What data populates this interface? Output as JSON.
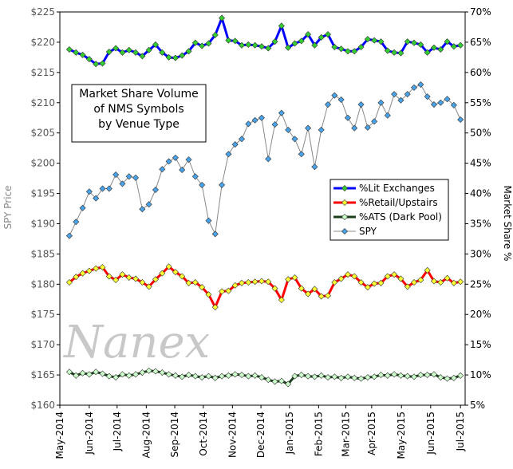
{
  "chart_data": {
    "type": "line",
    "title": [
      "Market Share Volume",
      "of NMS Symbols",
      "by Venue Type"
    ],
    "watermark": "Nanex",
    "y_label": "SPY Price",
    "y2_label": "Market Share %",
    "categories": [
      null,
      null,
      null,
      null,
      null,
      null,
      null,
      null,
      null,
      null,
      null,
      null,
      null,
      null,
      null,
      null,
      null,
      null,
      null,
      null,
      null,
      null,
      null,
      null,
      null,
      null,
      null,
      null,
      null,
      null,
      null,
      null,
      null,
      null,
      null,
      null,
      null,
      null,
      null,
      null,
      null,
      null,
      null,
      null,
      null,
      null,
      null,
      null,
      null,
      null,
      null,
      null,
      null,
      null,
      null,
      null,
      null,
      null,
      null,
      null
    ],
    "xlim": [
      -1.44,
      59.7
    ],
    "xticks": [
      {
        "value": -1.44,
        "label": "May-2014"
      },
      {
        "value": 3.0,
        "label": "Jun-2014"
      },
      {
        "value": 7.2,
        "label": "Jul-2014"
      },
      {
        "value": 11.6,
        "label": "Aug-2014"
      },
      {
        "value": 15.9,
        "label": "Sep-2014"
      },
      {
        "value": 20.2,
        "label": "Oct-2014"
      },
      {
        "value": 24.6,
        "label": "Nov-2014"
      },
      {
        "value": 28.9,
        "label": "Dec-2014"
      },
      {
        "value": 33.2,
        "label": "Jan-2015"
      },
      {
        "value": 37.6,
        "label": "Feb-2015"
      },
      {
        "value": 41.7,
        "label": "Mar-2015"
      },
      {
        "value": 45.6,
        "label": "Apr-2015"
      },
      {
        "value": 50.1,
        "label": "May-2015"
      },
      {
        "value": 54.5,
        "label": "Jun-2015"
      },
      {
        "value": 59.0,
        "label": "Jul-2015"
      }
    ],
    "ylim": [
      160,
      225
    ],
    "yticks": [
      {
        "value": 160,
        "label": "$160"
      },
      {
        "value": 165,
        "label": "$165"
      },
      {
        "value": 170,
        "label": "$170"
      },
      {
        "value": 175,
        "label": "$175"
      },
      {
        "value": 180,
        "label": "$180"
      },
      {
        "value": 185,
        "label": "$185"
      },
      {
        "value": 190,
        "label": "$190"
      },
      {
        "value": 195,
        "label": "$195"
      },
      {
        "value": 200,
        "label": "$200"
      },
      {
        "value": 205,
        "label": "$205"
      },
      {
        "value": 210,
        "label": "$210"
      },
      {
        "value": 215,
        "label": "$215"
      },
      {
        "value": 220,
        "label": "$220"
      },
      {
        "value": 225,
        "label": "$225"
      }
    ],
    "y2lim": [
      5,
      70
    ],
    "y2ticks": [
      {
        "value": 5,
        "label": "5%"
      },
      {
        "value": 10,
        "label": "10%"
      },
      {
        "value": 15,
        "label": "15%"
      },
      {
        "value": 20,
        "label": "20%"
      },
      {
        "value": 25,
        "label": "25%"
      },
      {
        "value": 30,
        "label": "30%"
      },
      {
        "value": 35,
        "label": "35%"
      },
      {
        "value": 40,
        "label": "40%"
      },
      {
        "value": 45,
        "label": "45%"
      },
      {
        "value": 50,
        "label": "50%"
      },
      {
        "value": 55,
        "label": "55%"
      },
      {
        "value": 60,
        "label": "60%"
      },
      {
        "value": 65,
        "label": "65%"
      },
      {
        "value": 70,
        "label": "70%"
      }
    ],
    "legend": "right",
    "series": [
      {
        "name": "%Lit Exchanges",
        "color": "#0000ff",
        "marker_color": "#33cc33",
        "line_width": 3,
        "axis": "y2",
        "values": [
          63.8,
          63.3,
          62.9,
          62.2,
          61.4,
          61.5,
          63.4,
          64.0,
          63.3,
          63.7,
          63.3,
          62.7,
          63.7,
          64.6,
          63.3,
          62.5,
          62.4,
          62.8,
          63.5,
          64.9,
          64.4,
          64.8,
          66.2,
          69.0,
          65.3,
          65.2,
          64.5,
          64.6,
          64.5,
          64.3,
          64.0,
          65.1,
          67.7,
          64.1,
          64.8,
          65.2,
          66.3,
          64.5,
          65.8,
          66.3,
          64.2,
          63.9,
          63.5,
          63.5,
          64.2,
          65.5,
          65.3,
          65.1,
          63.6,
          63.3,
          63.2,
          65.1,
          64.9,
          64.6,
          63.3,
          64.1,
          63.8,
          65.1,
          64.3,
          64.5
        ]
      },
      {
        "name": "%Retail/Upstairs",
        "color": "#ff0000",
        "marker_color": "#ffff33",
        "line_width": 3,
        "axis": "y2",
        "values": [
          25.3,
          26.2,
          26.8,
          27.2,
          27.6,
          27.8,
          26.3,
          25.7,
          26.6,
          26.1,
          25.9,
          25.3,
          24.6,
          25.8,
          26.8,
          27.9,
          27.0,
          26.3,
          25.2,
          25.3,
          24.5,
          23.3,
          21.2,
          23.8,
          23.9,
          24.8,
          25.2,
          25.3,
          25.4,
          25.5,
          25.4,
          24.3,
          22.4,
          25.8,
          26.1,
          24.3,
          23.4,
          24.2,
          23.0,
          23.1,
          25.3,
          25.9,
          26.6,
          26.3,
          25.3,
          24.5,
          25.1,
          25.2,
          26.3,
          26.6,
          25.9,
          24.6,
          25.3,
          25.7,
          27.3,
          25.5,
          25.3,
          26.0,
          25.2,
          25.4
        ]
      },
      {
        "name": "%ATS (Dark Pool)",
        "color": "#1a3d1a",
        "marker_color": "#ccffcc",
        "line_width": 3,
        "axis": "y2",
        "values": [
          10.5,
          9.9,
          10.3,
          10.1,
          10.5,
          10.2,
          9.8,
          9.6,
          10.1,
          9.9,
          10.1,
          10.4,
          10.7,
          10.6,
          10.4,
          10.1,
          9.9,
          9.7,
          10.0,
          9.8,
          9.6,
          9.8,
          9.5,
          9.8,
          9.9,
          10.1,
          10.0,
          9.8,
          9.9,
          9.6,
          9.2,
          8.9,
          9.0,
          8.5,
          9.8,
          10.0,
          9.8,
          9.7,
          9.9,
          9.6,
          9.7,
          9.5,
          9.7,
          9.5,
          9.4,
          9.6,
          9.7,
          10.0,
          9.9,
          10.1,
          9.9,
          9.8,
          9.7,
          10.0,
          10.0,
          10.1,
          9.6,
          9.4,
          9.5,
          9.9
        ]
      },
      {
        "name": "SPY",
        "color": "#888888",
        "marker_color": "#4aa3e8",
        "line_width": 1,
        "axis": "y",
        "values": [
          188.0,
          190.3,
          192.6,
          195.3,
          194.2,
          195.8,
          195.8,
          198.1,
          196.6,
          197.8,
          197.6,
          192.4,
          193.2,
          195.6,
          199.0,
          200.3,
          200.9,
          198.9,
          200.6,
          197.8,
          196.4,
          190.5,
          188.3,
          196.4,
          201.5,
          203.1,
          204.0,
          206.5,
          207.1,
          207.5,
          200.7,
          206.4,
          208.3,
          205.5,
          204.0,
          201.5,
          205.8,
          199.4,
          205.5,
          209.7,
          211.2,
          210.5,
          207.5,
          205.8,
          209.7,
          205.9,
          206.9,
          210.0,
          207.9,
          211.4,
          210.4,
          211.4,
          212.5,
          213.0,
          211.0,
          209.7,
          210.0,
          210.6,
          209.6,
          207.2
        ]
      }
    ]
  }
}
